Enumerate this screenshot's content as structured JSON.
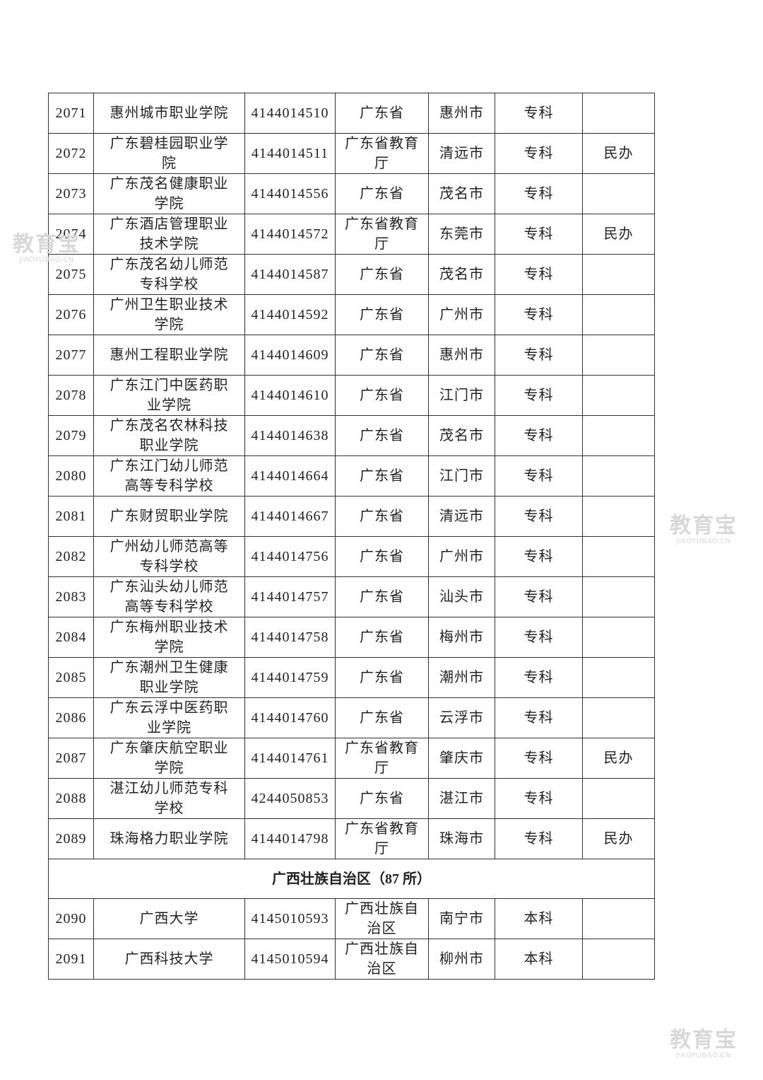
{
  "section": {
    "title": "广西壮族自治区（87 所）"
  },
  "rows_before": [
    {
      "no": "2071",
      "name": "惠州城市职业学院",
      "code": "4144014510",
      "authority": "广东省",
      "city": "惠州市",
      "level": "专科",
      "note": ""
    },
    {
      "no": "2072",
      "name": "广东碧桂园职业学院",
      "code": "4144014511",
      "authority": "广东省教育厅",
      "city": "清远市",
      "level": "专科",
      "note": "民办"
    },
    {
      "no": "2073",
      "name": "广东茂名健康职业学院",
      "code": "4144014556",
      "authority": "广东省",
      "city": "茂名市",
      "level": "专科",
      "note": ""
    },
    {
      "no": "2074",
      "name": "广东酒店管理职业技术学院",
      "code": "4144014572",
      "authority": "广东省教育厅",
      "city": "东莞市",
      "level": "专科",
      "note": "民办"
    },
    {
      "no": "2075",
      "name": "广东茂名幼儿师范专科学校",
      "code": "4144014587",
      "authority": "广东省",
      "city": "茂名市",
      "level": "专科",
      "note": ""
    },
    {
      "no": "2076",
      "name": "广州卫生职业技术学院",
      "code": "4144014592",
      "authority": "广东省",
      "city": "广州市",
      "level": "专科",
      "note": ""
    },
    {
      "no": "2077",
      "name": "惠州工程职业学院",
      "code": "4144014609",
      "authority": "广东省",
      "city": "惠州市",
      "level": "专科",
      "note": ""
    },
    {
      "no": "2078",
      "name": "广东江门中医药职业学院",
      "code": "4144014610",
      "authority": "广东省",
      "city": "江门市",
      "level": "专科",
      "note": ""
    },
    {
      "no": "2079",
      "name": "广东茂名农林科技职业学院",
      "code": "4144014638",
      "authority": "广东省",
      "city": "茂名市",
      "level": "专科",
      "note": ""
    },
    {
      "no": "2080",
      "name": "广东江门幼儿师范高等专科学校",
      "code": "4144014664",
      "authority": "广东省",
      "city": "江门市",
      "level": "专科",
      "note": ""
    },
    {
      "no": "2081",
      "name": "广东财贸职业学院",
      "code": "4144014667",
      "authority": "广东省",
      "city": "清远市",
      "level": "专科",
      "note": ""
    },
    {
      "no": "2082",
      "name": "广州幼儿师范高等专科学校",
      "code": "4144014756",
      "authority": "广东省",
      "city": "广州市",
      "level": "专科",
      "note": ""
    },
    {
      "no": "2083",
      "name": "广东汕头幼儿师范高等专科学校",
      "code": "4144014757",
      "authority": "广东省",
      "city": "汕头市",
      "level": "专科",
      "note": ""
    },
    {
      "no": "2084",
      "name": "广东梅州职业技术学院",
      "code": "4144014758",
      "authority": "广东省",
      "city": "梅州市",
      "level": "专科",
      "note": ""
    },
    {
      "no": "2085",
      "name": "广东潮州卫生健康职业学院",
      "code": "4144014759",
      "authority": "广东省",
      "city": "潮州市",
      "level": "专科",
      "note": ""
    },
    {
      "no": "2086",
      "name": "广东云浮中医药职业学院",
      "code": "4144014760",
      "authority": "广东省",
      "city": "云浮市",
      "level": "专科",
      "note": ""
    },
    {
      "no": "2087",
      "name": "广东肇庆航空职业学院",
      "code": "4144014761",
      "authority": "广东省教育厅",
      "city": "肇庆市",
      "level": "专科",
      "note": "民办"
    },
    {
      "no": "2088",
      "name": "湛江幼儿师范专科学校",
      "code": "4244050853",
      "authority": "广东省",
      "city": "湛江市",
      "level": "专科",
      "note": ""
    },
    {
      "no": "2089",
      "name": "珠海格力职业学院",
      "code": "4144014798",
      "authority": "广东省教育厅",
      "city": "珠海市",
      "level": "专科",
      "note": "民办"
    }
  ],
  "rows_after": [
    {
      "no": "2090",
      "name": "广西大学",
      "code": "4145010593",
      "authority": "广西壮族自治区",
      "city": "南宁市",
      "level": "本科",
      "note": ""
    },
    {
      "no": "2091",
      "name": "广西科技大学",
      "code": "4145010594",
      "authority": "广西壮族自治区",
      "city": "柳州市",
      "level": "本科",
      "note": ""
    }
  ],
  "watermark": {
    "logo_text": "教育宝",
    "domain": "JIAOYUBAO.CN"
  }
}
